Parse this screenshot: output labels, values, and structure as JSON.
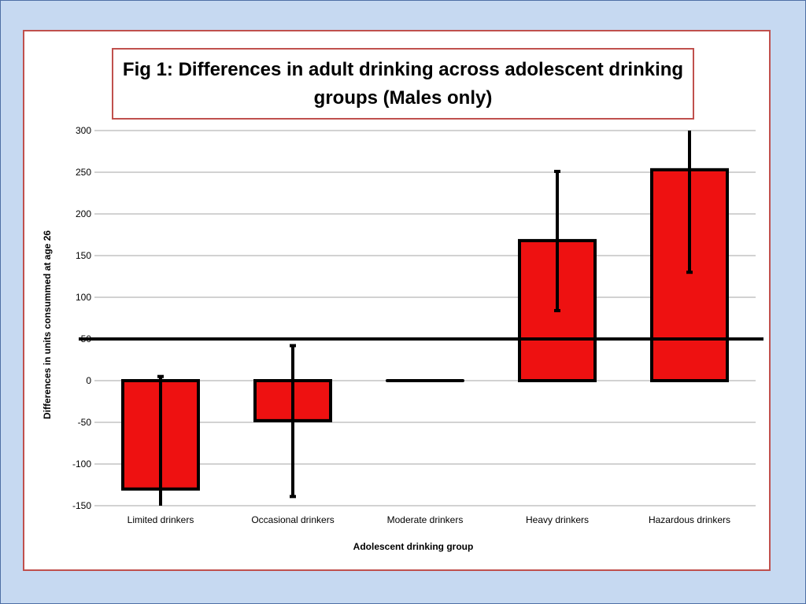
{
  "chart_data": {
    "type": "bar",
    "title": "Fig 1: Differences in adult drinking across adolescent drinking groups (Males only)",
    "xlabel": "Adolescent drinking group",
    "ylabel": "Differences in units consummed at age 26",
    "categories": [
      "Limited drinkers",
      "Occasional drinkers",
      "Moderate drinkers",
      "Heavy drinkers",
      "Hazardous drinkers"
    ],
    "values": [
      -130,
      -48,
      0,
      168,
      253
    ],
    "error_low": [
      -150,
      -139,
      0,
      84,
      130
    ],
    "error_high": [
      5,
      42,
      0,
      251,
      300
    ],
    "ylim": [
      -150,
      300
    ],
    "yticks": [
      300,
      250,
      200,
      150,
      100,
      50,
      0,
      -50,
      -100,
      -150
    ],
    "reference_line": 50,
    "grid": true,
    "bar_color": "#ee1111",
    "bar_outline": "#000000",
    "grid_color": "#a6a6a6",
    "frame_color": "#c0504d",
    "background": "#c6d9f1"
  }
}
